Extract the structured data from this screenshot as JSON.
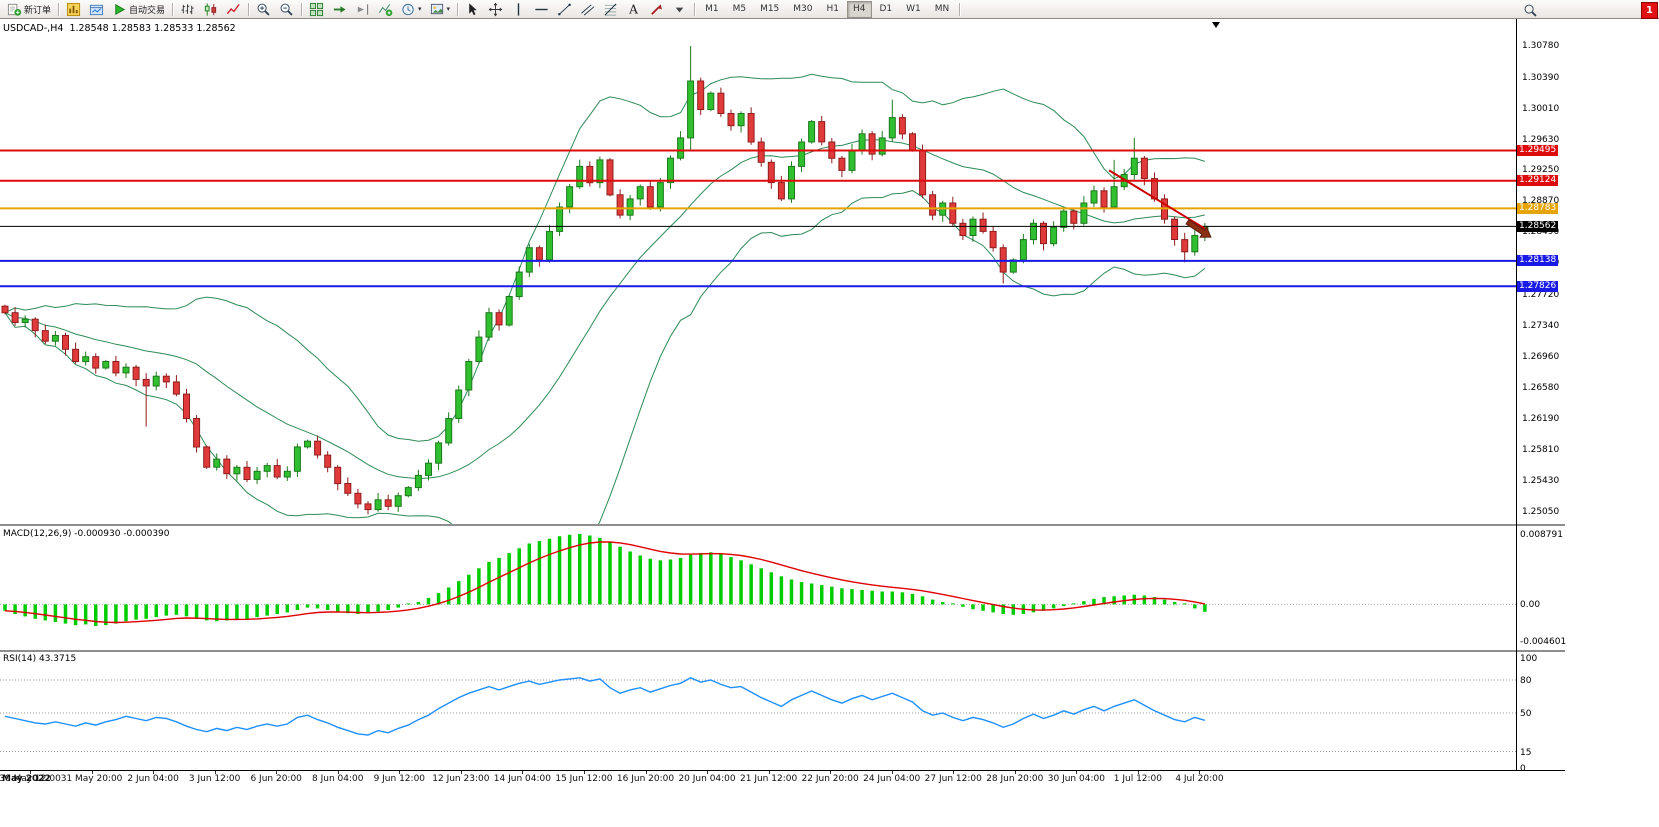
{
  "toolbar": {
    "timeframes": [
      "M1",
      "M5",
      "M15",
      "M30",
      "H1",
      "H4",
      "D1",
      "W1",
      "MN"
    ],
    "active_timeframe": "H4",
    "notification_count": "1",
    "items": [
      {
        "kind": "text",
        "name": "new-order-button",
        "icon": "new-order-icon",
        "label": "新订单"
      },
      {
        "kind": "sep"
      },
      {
        "kind": "icon",
        "name": "charts-button",
        "icon": "new-chart-icon"
      },
      {
        "kind": "icon",
        "name": "profiles-button",
        "icon": "profiles-icon"
      },
      {
        "kind": "text",
        "name": "autotrading-button",
        "icon": "autotrading-icon",
        "label": "自动交易"
      },
      {
        "kind": "sep"
      },
      {
        "kind": "icon",
        "name": "bar-chart-button",
        "icon": "bar-chart-icon"
      },
      {
        "kind": "icon",
        "name": "candlestick-chart-button",
        "icon": "candlestick-chart-icon"
      },
      {
        "kind": "icon",
        "name": "line-chart-button",
        "icon": "line-chart-icon"
      },
      {
        "kind": "sep"
      },
      {
        "kind": "icon",
        "name": "zoom-in-button",
        "icon": "zoom-in-icon"
      },
      {
        "kind": "icon",
        "name": "zoom-out-button",
        "icon": "zoom-out-icon"
      },
      {
        "kind": "sep"
      },
      {
        "kind": "icon",
        "name": "tile-windows-button",
        "icon": "tile-windows-icon"
      },
      {
        "kind": "icon",
        "name": "auto-scroll-button",
        "icon": "auto-scroll-icon"
      },
      {
        "kind": "icon",
        "name": "chart-shift-button",
        "icon": "chart-shift-icon"
      },
      {
        "kind": "icon",
        "name": "indicators-button",
        "icon": "indicators-icon"
      },
      {
        "kind": "drop",
        "name": "periods-dropdown",
        "icon": "periods-icon"
      },
      {
        "kind": "drop",
        "name": "templates-dropdown",
        "icon": "templates-icon"
      },
      {
        "kind": "sep"
      },
      {
        "kind": "icon",
        "name": "cursor-button",
        "icon": "cursor-icon"
      },
      {
        "kind": "icon",
        "name": "crosshair-button",
        "icon": "crosshair-icon"
      },
      {
        "kind": "icon",
        "name": "vertical-line-button",
        "icon": "vertical-line-icon"
      },
      {
        "kind": "icon",
        "name": "horizontal-line-button",
        "icon": "horizontal-line-icon"
      },
      {
        "kind": "icon",
        "name": "trendline-button",
        "icon": "trendline-icon"
      },
      {
        "kind": "icon",
        "name": "channel-button",
        "icon": "channel-icon"
      },
      {
        "kind": "icon",
        "name": "fibonacci-button",
        "icon": "fibonacci-icon"
      },
      {
        "kind": "icon",
        "name": "text-button",
        "icon": "text-icon"
      },
      {
        "kind": "icon",
        "name": "arrow-label-button",
        "icon": "arrow-label-icon"
      },
      {
        "kind": "icon",
        "name": "shapes-dropdown",
        "icon": "dropdown-caret-icon"
      },
      {
        "kind": "sep"
      }
    ],
    "icon_shapes": {
      "new-order-icon": "document-plus",
      "new-chart-icon": "gold-bars-chart",
      "profiles-icon": "window-folder",
      "autotrading-icon": "green-play-triangle",
      "bar-chart-icon": "ohlc-bars",
      "candlestick-chart-icon": "two-candles",
      "line-chart-icon": "zigzag-line",
      "zoom-in-icon": "magnifier-plus",
      "zoom-out-icon": "magnifier-minus",
      "tile-windows-icon": "green-grid",
      "auto-scroll-icon": "arrow-to-right",
      "chart-shift-icon": "shift-arrow-bar",
      "indicators-icon": "chart-plus",
      "periods-icon": "clock",
      "templates-icon": "picture",
      "cursor-icon": "pointer-arrow",
      "crosshair-icon": "cross",
      "vertical-line-icon": "vertical-bar",
      "horizontal-line-icon": "horizontal-bar",
      "trendline-icon": "diagonal-line",
      "channel-icon": "double-diagonal",
      "fibonacci-icon": "fib-lines",
      "text-icon": "letter-A",
      "arrow-label-icon": "red-arrow",
      "dropdown-caret-icon": "caret-down",
      "search-icon": "magnifier",
      "end-of-chart-icon": "black-down-triangle"
    }
  },
  "window": {
    "header": {
      "symbol_period": "USDCAD-,H4",
      "open": "1.28548",
      "high": "1.28583",
      "low": "1.28533",
      "close": "1.28562"
    }
  },
  "chart_data": {
    "type": "candlestick+indicators",
    "symbol": "USDCAD-",
    "period": "H4",
    "price_range": {
      "top": 1.31112,
      "bottom": 1.2489
    },
    "price_axis_ticks": [
      "1.30780",
      "1.30390",
      "1.30010",
      "1.29630",
      "1.29250",
      "1.28870",
      "1.28490",
      "1.28110",
      "1.27720",
      "1.27340",
      "1.26960",
      "1.26580",
      "1.26190",
      "1.25810",
      "1.25430",
      "1.25050"
    ],
    "horizontal_lines": [
      {
        "price": "1.29495",
        "value": 1.29495,
        "color": "#dd0b0b",
        "type": "resistance"
      },
      {
        "price": "1.29124",
        "value": 1.29124,
        "color": "#dd0b0b",
        "type": "resistance"
      },
      {
        "price": "1.28783",
        "value": 1.28783,
        "color": "#e6a400",
        "type": "pivot"
      },
      {
        "price": "1.28562",
        "value": 1.28562,
        "color": "#000000",
        "type": "current-price"
      },
      {
        "price": "1.28138",
        "value": 1.28138,
        "color": "#1a1ae6",
        "type": "support"
      },
      {
        "price": "1.27826",
        "value": 1.27826,
        "color": "#1a1ae6",
        "type": "support"
      }
    ],
    "first_open": 1.2758,
    "closes": [
      1.275,
      1.2738,
      1.2742,
      1.2728,
      1.2715,
      1.2722,
      1.2705,
      1.269,
      1.2696,
      1.2682,
      1.269,
      1.2676,
      1.2683,
      1.2668,
      1.266,
      1.2672,
      1.2665,
      1.265,
      1.262,
      1.2585,
      1.256,
      1.257,
      1.2552,
      1.256,
      1.2545,
      1.2555,
      1.2562,
      1.2548,
      1.2555,
      1.2585,
      1.2592,
      1.2575,
      1.256,
      1.254,
      1.2528,
      1.2515,
      1.2508,
      1.252,
      1.2512,
      1.2525,
      1.2535,
      1.255,
      1.2565,
      1.259,
      1.262,
      1.2655,
      1.269,
      1.272,
      1.275,
      1.2735,
      1.277,
      1.28,
      1.283,
      1.2815,
      1.285,
      1.288,
      1.2905,
      1.293,
      1.291,
      1.2938,
      1.2895,
      1.287,
      1.289,
      1.2905,
      1.288,
      1.291,
      1.294,
      1.2965,
      1.3035,
      1.3,
      1.302,
      1.2995,
      1.298,
      1.2995,
      1.296,
      1.2935,
      1.291,
      1.289,
      1.293,
      1.296,
      1.2985,
      1.296,
      1.294,
      1.2925,
      1.295,
      1.297,
      1.2945,
      1.2965,
      1.299,
      1.297,
      1.295,
      1.2895,
      1.287,
      1.2885,
      1.286,
      1.2845,
      1.2865,
      1.285,
      1.283,
      1.28,
      1.2815,
      1.284,
      1.286,
      1.2835,
      1.2855,
      1.2875,
      1.286,
      1.2885,
      1.29,
      1.288,
      1.2905,
      1.292,
      1.294,
      1.2915,
      1.289,
      1.2865,
      1.284,
      1.2825,
      1.2845,
      1.28562
    ],
    "wick_overrides": {
      "14": {
        "l": 1.261
      },
      "36": {
        "l": 1.2502
      },
      "68": {
        "h": 1.3078,
        "l": 1.295
      },
      "88": {
        "h": 1.3012
      },
      "99": {
        "l": 1.2786
      },
      "110": {
        "h": 1.2938
      },
      "112": {
        "h": 1.2965
      },
      "117": {
        "l": 1.2812
      }
    },
    "bollinger": {
      "period": 20,
      "deviation": 2,
      "color": "#2e8b57"
    },
    "macd": {
      "label": "MACD(12,26,9)",
      "value": "-0.000930",
      "signal_value": "-0.000390",
      "axis_max": "0.008791",
      "axis_zero": "0.00",
      "axis_min": "-0.004601",
      "range": {
        "max": 0.00966,
        "min": -0.0057
      },
      "histogram_color": "#00cc00",
      "signal_color": "#e00000",
      "histogram": [
        -0.0008,
        -0.0012,
        -0.0015,
        -0.0018,
        -0.002,
        -0.0022,
        -0.0024,
        -0.0026,
        -0.0025,
        -0.0027,
        -0.0026,
        -0.0024,
        -0.0021,
        -0.0019,
        -0.0018,
        -0.0016,
        -0.0014,
        -0.0013,
        -0.0015,
        -0.0018,
        -0.002,
        -0.0021,
        -0.002,
        -0.0019,
        -0.0018,
        -0.0016,
        -0.0014,
        -0.0012,
        -0.001,
        -0.0007,
        -0.0004,
        -0.0005,
        -0.0007,
        -0.0009,
        -0.0011,
        -0.0012,
        -0.0011,
        -0.0009,
        -0.0007,
        -0.0004,
        -0.0001,
        0.0003,
        0.0008,
        0.0014,
        0.0021,
        0.0029,
        0.0037,
        0.0045,
        0.0053,
        0.0058,
        0.0064,
        0.007,
        0.0076,
        0.0079,
        0.0082,
        0.0085,
        0.0087,
        0.0088,
        0.0086,
        0.0083,
        0.0078,
        0.0072,
        0.0066,
        0.0061,
        0.0057,
        0.0055,
        0.0056,
        0.0058,
        0.0062,
        0.0064,
        0.0065,
        0.0063,
        0.0059,
        0.0055,
        0.005,
        0.0045,
        0.004,
        0.0035,
        0.0031,
        0.0028,
        0.0026,
        0.0024,
        0.0022,
        0.002,
        0.0019,
        0.0018,
        0.0017,
        0.0016,
        0.0016,
        0.0015,
        0.0013,
        0.001,
        0.0006,
        0.0003,
        0.0,
        -0.0003,
        -0.0006,
        -0.0008,
        -0.001,
        -0.0012,
        -0.0013,
        -0.0012,
        -0.001,
        -0.0008,
        -0.0005,
        -0.0002,
        0.0001,
        0.0004,
        0.0007,
        0.0009,
        0.001,
        0.0011,
        0.0012,
        0.0011,
        0.0009,
        0.0006,
        0.0003,
        0.0,
        -0.0005,
        -0.00093
      ]
    },
    "rsi": {
      "label": "RSI(14)",
      "value": "43.3715",
      "color": "#1e90ff",
      "levels": [
        80,
        50,
        15
      ],
      "axis_ticks": [
        "100",
        "80",
        "50",
        "15",
        "0"
      ],
      "range": {
        "max": 105.5,
        "min": -1.8
      },
      "values": [
        47,
        45,
        43,
        41,
        40,
        42,
        40,
        38,
        41,
        39,
        42,
        44,
        47,
        45,
        43,
        46,
        45,
        42,
        38,
        35,
        33,
        36,
        34,
        37,
        35,
        38,
        40,
        38,
        40,
        46,
        48,
        44,
        41,
        37,
        34,
        31,
        30,
        34,
        32,
        36,
        39,
        44,
        48,
        54,
        59,
        64,
        68,
        71,
        74,
        71,
        74,
        77,
        79,
        76,
        78,
        80,
        81,
        82,
        79,
        81,
        73,
        68,
        71,
        73,
        69,
        72,
        75,
        77,
        82,
        78,
        80,
        76,
        73,
        74,
        69,
        64,
        60,
        56,
        62,
        66,
        70,
        66,
        62,
        59,
        63,
        66,
        62,
        65,
        68,
        64,
        60,
        52,
        48,
        50,
        46,
        43,
        46,
        44,
        41,
        37,
        40,
        45,
        49,
        45,
        48,
        52,
        49,
        53,
        56,
        52,
        56,
        59,
        62,
        57,
        52,
        48,
        44,
        42,
        46,
        43.37
      ]
    },
    "time_axis": [
      "May 2022",
      "30 May 12:00",
      "31 May 20:00",
      "2 Jun 04:00",
      "3 Jun 12:00",
      "6 Jun 20:00",
      "8 Jun 04:00",
      "9 Jun 12:00",
      "12 Jun 23:00",
      "14 Jun 04:00",
      "15 Jun 12:00",
      "16 Jun 20:00",
      "20 Jun 04:00",
      "21 Jun 12:00",
      "22 Jun 20:00",
      "24 Jun 04:00",
      "27 Jun 12:00",
      "28 Jun 20:00",
      "30 Jun 04:00",
      "1 Jul 12:00",
      "4 Jul 20:00"
    ],
    "annotations": {
      "trendline": {
        "color": "#cc0000",
        "x1_index": 109.5,
        "price1": 1.2925,
        "x2_index": 119.2,
        "price2": 1.2852
      },
      "arrow": {
        "color": "#8b2e12",
        "x_index": 119.6,
        "price": 1.2843,
        "angle_deg": 33,
        "length": 28
      }
    }
  }
}
